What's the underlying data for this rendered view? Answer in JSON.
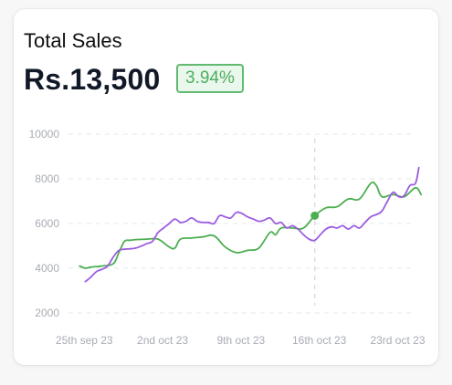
{
  "card": {
    "title": "Total Sales",
    "amount": "Rs.13,500",
    "change_badge": "3.94%"
  },
  "colors": {
    "green": "#4caf50",
    "purple": "#9c5de0",
    "grid": "#e5e7eb",
    "badge_border": "#62b970",
    "badge_bg": "#eaf7ec"
  },
  "chart_data": {
    "type": "line",
    "title": "",
    "xlabel": "",
    "ylabel": "",
    "ylim": [
      2000,
      10000
    ],
    "yticks": [
      2000,
      4000,
      6000,
      8000,
      10000
    ],
    "ytick_labels": [
      "2000",
      "4000",
      "6000",
      "8000",
      "10000"
    ],
    "xlim": [
      0,
      31
    ],
    "xticks": [
      1,
      8,
      15,
      22,
      29
    ],
    "xtick_labels": [
      "25th sep 23",
      "2nd oct 23",
      "9th oct 23",
      "16th oct 23",
      "23rd oct 23"
    ],
    "grid": "horizontal-dashed",
    "highlight": {
      "x": 22,
      "y": 6350,
      "series": 0
    },
    "series": [
      {
        "color": "#4caf50",
        "x": [
          1,
          1.5,
          2,
          3,
          4,
          4.5,
          5,
          5.5,
          6,
          7,
          8,
          9,
          9.5,
          10,
          11,
          12,
          13,
          14,
          15,
          16,
          17,
          18,
          18.5,
          19,
          20,
          21,
          22,
          23,
          24,
          25,
          26,
          27,
          27.5,
          28,
          29,
          30,
          31,
          31.5
        ],
        "y": [
          4100,
          4000,
          4050,
          4100,
          4200,
          4700,
          5200,
          5250,
          5280,
          5300,
          5300,
          4950,
          4900,
          5300,
          5350,
          5400,
          5450,
          4950,
          4700,
          4800,
          4900,
          5600,
          5500,
          5800,
          5800,
          5800,
          6350,
          6700,
          6750,
          7100,
          7100,
          7800,
          7700,
          7200,
          7300,
          7200,
          7600,
          7300
        ]
      },
      {
        "color": "#9c5de0",
        "x": [
          1.5,
          2,
          2.5,
          3,
          3.5,
          4,
          4.5,
          5,
          6,
          7,
          7.5,
          8,
          8.5,
          9,
          9.5,
          10,
          10.5,
          11,
          11.5,
          12,
          12.5,
          13,
          13.5,
          14,
          14.5,
          15,
          15.5,
          16,
          16.5,
          17,
          17.5,
          18,
          18.5,
          19,
          19.5,
          20,
          20.5,
          21,
          21.5,
          22,
          22.5,
          23,
          23.5,
          24,
          24.5,
          25,
          25.5,
          26,
          26.5,
          27,
          27.5,
          28,
          28.5,
          29,
          29.5,
          30,
          30.5,
          31,
          31.3
        ],
        "y": [
          3400,
          3600,
          3850,
          3950,
          4100,
          4500,
          4800,
          4850,
          4900,
          5100,
          5200,
          5600,
          5800,
          6000,
          6200,
          6050,
          6100,
          6250,
          6100,
          6050,
          6050,
          6000,
          6350,
          6300,
          6250,
          6500,
          6450,
          6300,
          6200,
          6100,
          6150,
          6250,
          6000,
          6050,
          5800,
          5900,
          5750,
          5500,
          5300,
          5250,
          5500,
          5750,
          5850,
          5800,
          5900,
          5750,
          5900,
          5800,
          6050,
          6300,
          6400,
          6550,
          7000,
          7400,
          7200,
          7250,
          7700,
          7800,
          8500
        ]
      }
    ]
  }
}
